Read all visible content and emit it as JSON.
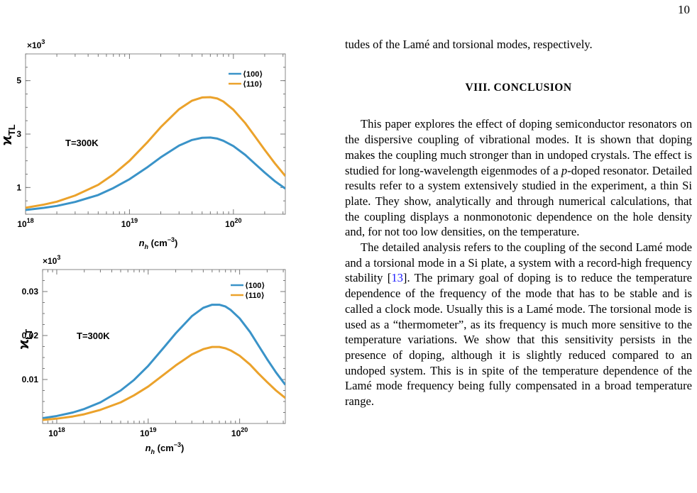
{
  "page_number": "10",
  "chart_data": [
    {
      "type": "line",
      "title": "",
      "multiplier_label": "×10",
      "multiplier_exp": "3",
      "ylabel_symbol": "ϰ",
      "ylabel_sub": "TL",
      "xlabel_symbol": "n",
      "xlabel_sub": "h",
      "xlabel_unit": "(cm",
      "xlabel_unit_exp": "−3",
      "xlabel_unit_close": ")",
      "xscale": "log",
      "xlim": [
        1e+18,
        3.16e+20
      ],
      "ylim": [
        0,
        6
      ],
      "x_ticks": [
        {
          "value": 1e+18,
          "base": "10",
          "exp": "18"
        },
        {
          "value": 1e+19,
          "base": "10",
          "exp": "19"
        },
        {
          "value": 1e+20,
          "base": "10",
          "exp": "20"
        }
      ],
      "y_ticks": [
        {
          "value": 1,
          "label": "1"
        },
        {
          "value": 3,
          "label": "3"
        },
        {
          "value": 5,
          "label": "5"
        }
      ],
      "annotation": "T=300K",
      "legend_position": "top-right",
      "x": [
        1e+18,
        1.5e+18,
        2e+18,
        3e+18,
        5e+18,
        7e+18,
        1e+19,
        1.5e+19,
        2e+19,
        3e+19,
        4e+19,
        5e+19,
        6e+19,
        7e+19,
        8e+19,
        1e+20,
        1.3e+20,
        1.6e+20,
        2e+20,
        2.5e+20,
        3.16e+20
      ],
      "series": [
        {
          "name": "⟨100⟩",
          "color": "#3a93c8",
          "values": [
            0.16,
            0.24,
            0.31,
            0.46,
            0.72,
            0.98,
            1.31,
            1.77,
            2.13,
            2.57,
            2.78,
            2.86,
            2.87,
            2.83,
            2.75,
            2.55,
            2.22,
            1.9,
            1.56,
            1.24,
            0.96
          ]
        },
        {
          "name": "⟨110⟩",
          "color": "#eba22b",
          "values": [
            0.24,
            0.36,
            0.47,
            0.7,
            1.1,
            1.49,
            2.0,
            2.71,
            3.26,
            3.93,
            4.25,
            4.37,
            4.38,
            4.33,
            4.22,
            3.91,
            3.41,
            2.93,
            2.41,
            1.91,
            1.43
          ]
        }
      ]
    },
    {
      "type": "line",
      "title": "",
      "multiplier_label": "×10",
      "multiplier_exp": "3",
      "ylabel_symbol": "ϰ",
      "ylabel_sub": "LT",
      "xlabel_symbol": "n",
      "xlabel_sub": "h",
      "xlabel_unit": "(cm",
      "xlabel_unit_exp": "−3",
      "xlabel_unit_close": ")",
      "xscale": "log",
      "xlim": [
        7e+17,
        3.16e+20
      ],
      "ylim": [
        0,
        0.035
      ],
      "x_ticks": [
        {
          "value": 1e+18,
          "base": "10",
          "exp": "18"
        },
        {
          "value": 1e+19,
          "base": "10",
          "exp": "19"
        },
        {
          "value": 1e+20,
          "base": "10",
          "exp": "20"
        }
      ],
      "y_ticks": [
        {
          "value": 0.01,
          "label": "0.01"
        },
        {
          "value": 0.02,
          "label": "0.02"
        },
        {
          "value": 0.03,
          "label": "0.03"
        }
      ],
      "annotation": "T=300K",
      "legend_position": "top-right",
      "x": [
        7e+17,
        1e+18,
        1.5e+18,
        2e+18,
        3e+18,
        5e+18,
        7e+18,
        1e+19,
        1.5e+19,
        2e+19,
        3e+19,
        4e+19,
        5e+19,
        6e+19,
        7e+19,
        8e+19,
        1e+20,
        1.3e+20,
        1.6e+20,
        2e+20,
        2.5e+20,
        3.16e+20
      ],
      "series": [
        {
          "name": "⟨100⟩",
          "color": "#3a93c8",
          "values": [
            0.0012,
            0.0017,
            0.0025,
            0.0033,
            0.0048,
            0.0075,
            0.0099,
            0.0131,
            0.0174,
            0.0205,
            0.0244,
            0.0263,
            0.027,
            0.027,
            0.0266,
            0.0258,
            0.0239,
            0.0208,
            0.0178,
            0.0146,
            0.0116,
            0.0088
          ]
        },
        {
          "name": "⟨110⟩",
          "color": "#eba22b",
          "values": [
            0.0008,
            0.0011,
            0.0016,
            0.0021,
            0.0031,
            0.0048,
            0.0064,
            0.0084,
            0.0112,
            0.0132,
            0.0157,
            0.0169,
            0.0174,
            0.0174,
            0.0171,
            0.0166,
            0.0154,
            0.0134,
            0.0114,
            0.0094,
            0.0075,
            0.0058
          ]
        }
      ]
    }
  ],
  "text": {
    "intro_line": "tudes of the Lamé and torsional modes, respectively.",
    "section_heading": "VIII.   CONCLUSION",
    "p1_a": "This paper explores the effect of doping semiconductor resonators on the dispersive coupling of vibrational modes. It is shown that doping makes the coupling much stronger than in undoped crystals. The effect is studied for long-wavelength eigenmodes of a ",
    "p1_italic": "p",
    "p1_b": "-doped resonator. Detailed results refer to a system extensively studied in the experiment, a thin Si plate. They show, analytically and through numerical calculations, that the coupling displays a nonmonotonic dependence on the hole density and, for not too low densities, on the temperature.",
    "p2_a": "The detailed analysis refers to the coupling of the second Lamé mode and a torsional mode in a Si plate, a system with a record-high frequency stability [",
    "p2_cite": "13",
    "p2_b": "]. The primary goal of doping is to reduce the temperature dependence of the frequency of the mode that has to be stable and is called a clock mode. Usually this is a Lamé mode. The torsional mode is used as a “thermometer”, as its frequency is much more sensitive to the temperature variations. We show that this sensitivity persists in the presence of doping, although it is slightly reduced compared to an undoped system. This is in spite of the temperature dependence of the Lamé mode frequency being fully compensated in a broad temperature range."
  }
}
